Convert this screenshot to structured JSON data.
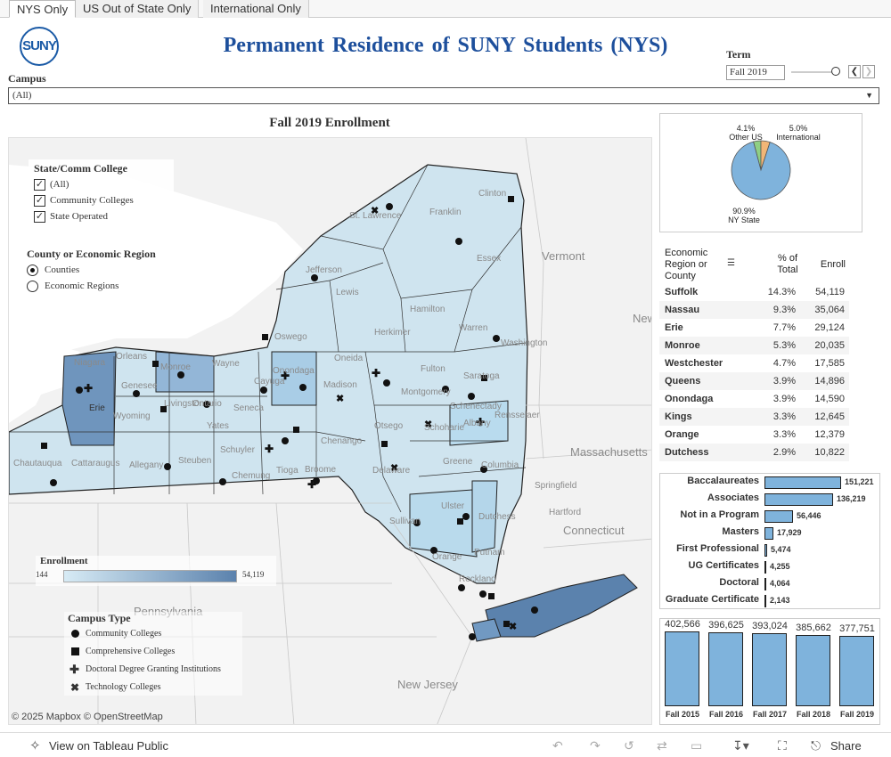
{
  "tabs": [
    "NYS Only",
    "US Out of State Only",
    "International Only"
  ],
  "logo_text": "SUNY",
  "title": "Permanent Residence of SUNY Students (NYS)",
  "term": {
    "label": "Term",
    "value": "Fall 2019"
  },
  "campus": {
    "label": "Campus",
    "value": "(All)"
  },
  "map": {
    "title": "Fall 2019 Enrollment",
    "filter1": {
      "title": "State/Comm College",
      "options": [
        "(All)",
        "Community Colleges",
        "State Operated"
      ]
    },
    "filter2": {
      "title": "County or Economic Region",
      "options": [
        "Counties",
        "Economic Regions"
      ],
      "selected": "Counties"
    },
    "enrollment_legend": {
      "title": "Enrollment",
      "min": "144",
      "max": "54,119",
      "color_low": "#d7ebf5",
      "color_high": "#5b82ad"
    },
    "campus_type": {
      "title": "Campus Type",
      "items": [
        "Community Colleges",
        "Comprehensive Colleges",
        "Doctoral Degree Granting Institutions",
        "Technology Colleges"
      ]
    },
    "copyright": "© 2025 Mapbox  © OpenStreetMap",
    "place_labels": [
      "St. Lawrence",
      "Franklin",
      "Clinton",
      "Jefferson",
      "Lewis",
      "Essex",
      "Hamilton",
      "Warren",
      "Oswego",
      "Oneida",
      "Herkimer",
      "Fulton",
      "Saratoga",
      "Washington",
      "Niagara",
      "Orleans",
      "Monroe",
      "Wayne",
      "Genesee",
      "Ontario",
      "Erie",
      "Wyoming",
      "Livingston",
      "Yates",
      "Seneca",
      "Cayuga",
      "Onondaga",
      "Madison",
      "Otsego",
      "Schoharie",
      "Albany",
      "Rensselaer",
      "Montgomery",
      "Schenectady",
      "Chautauqua",
      "Cattaraugus",
      "Allegany",
      "Steuben",
      "Schuyler",
      "Chemung",
      "Tioga",
      "Broome",
      "Chenango",
      "Delaware",
      "Greene",
      "Columbia",
      "Ulster",
      "Dutchess",
      "Sullivan",
      "Orange",
      "Putnam",
      "Rockland",
      "Vermont",
      "New Hampshire",
      "Massachusetts",
      "Connecticut",
      "Pennsylvania",
      "New Jersey",
      "Hartford",
      "Springfield"
    ]
  },
  "pie": {
    "slices": [
      {
        "label": "Other US",
        "pct": "4.1%",
        "value": 4.1,
        "color": "#8fcf84"
      },
      {
        "label": "International",
        "pct": "5.0%",
        "value": 5.0,
        "color": "#f2b677"
      },
      {
        "label": "NY State",
        "pct": "90.9%",
        "value": 90.9,
        "color": "#7fb3dc"
      }
    ]
  },
  "table": {
    "headers": [
      "Economic Region or County",
      "% of Total",
      "Enroll"
    ],
    "rows": [
      [
        "Suffolk",
        "14.3%",
        "54,119"
      ],
      [
        "Nassau",
        "9.3%",
        "35,064"
      ],
      [
        "Erie",
        "7.7%",
        "29,124"
      ],
      [
        "Monroe",
        "5.3%",
        "20,035"
      ],
      [
        "Westchester",
        "4.7%",
        "17,585"
      ],
      [
        "Queens",
        "3.9%",
        "14,896"
      ],
      [
        "Onondaga",
        "3.9%",
        "14,590"
      ],
      [
        "Kings",
        "3.3%",
        "12,645"
      ],
      [
        "Orange",
        "3.3%",
        "12,379"
      ],
      [
        "Dutchess",
        "2.9%",
        "10,822"
      ]
    ]
  },
  "program_bars": {
    "items": [
      {
        "label": "Baccalaureates",
        "value": 151221,
        "display": "151,221"
      },
      {
        "label": "Associates",
        "value": 136219,
        "display": "136,219"
      },
      {
        "label": "Not in a Program",
        "value": 56446,
        "display": "56,446"
      },
      {
        "label": "Masters",
        "value": 17929,
        "display": "17,929"
      },
      {
        "label": "First Professional",
        "value": 5474,
        "display": "5,474"
      },
      {
        "label": "UG Certificates",
        "value": 4255,
        "display": "4,255"
      },
      {
        "label": "Doctoral",
        "value": 4064,
        "display": "4,064"
      },
      {
        "label": "Graduate Certificate",
        "value": 2143,
        "display": "2,143"
      }
    ]
  },
  "trend": {
    "items": [
      {
        "label": "Fall 2015",
        "value": 402566,
        "display": "402,566"
      },
      {
        "label": "Fall 2016",
        "value": 396625,
        "display": "396,625"
      },
      {
        "label": "Fall 2017",
        "value": 393024,
        "display": "393,024"
      },
      {
        "label": "Fall 2018",
        "value": 385662,
        "display": "385,662"
      },
      {
        "label": "Fall 2019",
        "value": 377751,
        "display": "377,751"
      }
    ]
  },
  "footer": {
    "view_link": "View on Tableau Public",
    "share": "Share"
  }
}
